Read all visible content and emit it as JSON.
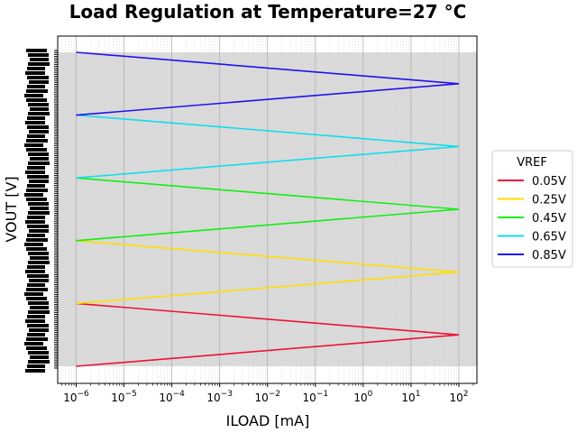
{
  "chart_data": {
    "type": "line",
    "title": "Load Regulation at Temperature=27 °C",
    "xlabel": "ILOAD [mA]",
    "ylabel": "VOUT [V]",
    "xscale": "log",
    "xlim": [
      5e-07,
      200
    ],
    "x_ticks": [
      {
        "value": 1e-06,
        "base": "10",
        "exp": "−6"
      },
      {
        "value": 1e-05,
        "base": "10",
        "exp": "−5"
      },
      {
        "value": 0.0001,
        "base": "10",
        "exp": "−4"
      },
      {
        "value": 0.001,
        "base": "10",
        "exp": "−3"
      },
      {
        "value": 0.01,
        "base": "10",
        "exp": "−2"
      },
      {
        "value": 0.1,
        "base": "10",
        "exp": "−1"
      },
      {
        "value": 1,
        "base": "10",
        "exp": "0"
      },
      {
        "value": 10,
        "base": "10",
        "exp": "1"
      },
      {
        "value": 100,
        "base": "10",
        "exp": "2"
      }
    ],
    "grid": true,
    "legend": {
      "title": "VREF",
      "placement": "right"
    },
    "series": [
      {
        "name": "0.05V",
        "color": "#ee1133",
        "x": [
          1e-06,
          100,
          1e-06
        ],
        "y": [
          0,
          1,
          2
        ]
      },
      {
        "name": "0.25V",
        "color": "#ffdd00",
        "x": [
          1e-06,
          100,
          1e-06
        ],
        "y": [
          2,
          3,
          4
        ]
      },
      {
        "name": "0.45V",
        "color": "#11ee11",
        "x": [
          1e-06,
          100,
          1e-06
        ],
        "y": [
          4,
          5,
          6
        ]
      },
      {
        "name": "0.65V",
        "color": "#11ddee",
        "x": [
          1e-06,
          100,
          1e-06
        ],
        "y": [
          6,
          7,
          8
        ]
      },
      {
        "name": "0.85V",
        "color": "#2211ee",
        "x": [
          1e-06,
          100,
          1e-06
        ],
        "y": [
          8,
          9,
          10
        ]
      }
    ]
  }
}
